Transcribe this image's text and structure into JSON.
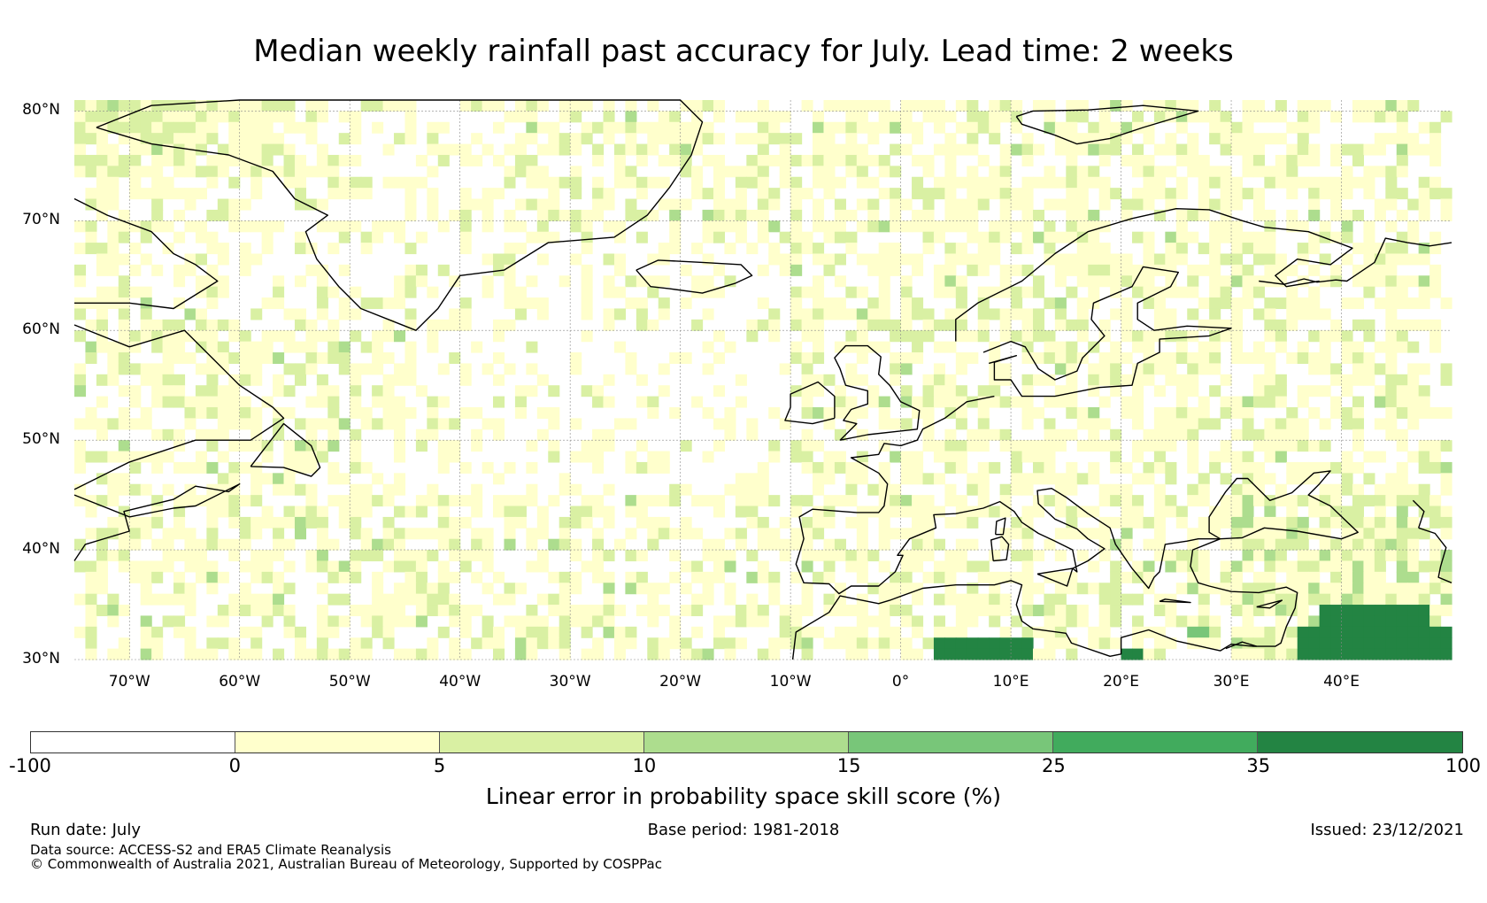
{
  "title": "Median weekly rainfall past accuracy for July. Lead time: 2 weeks",
  "map": {
    "region": "North Atlantic / Europe",
    "lat_range": [
      30,
      81
    ],
    "lon_range": [
      -75,
      50
    ],
    "lat_ticks": [
      {
        "value": 80,
        "label": "80°N"
      },
      {
        "value": 70,
        "label": "70°N"
      },
      {
        "value": 60,
        "label": "60°N"
      },
      {
        "value": 50,
        "label": "50°N"
      },
      {
        "value": 40,
        "label": "40°N"
      },
      {
        "value": 30,
        "label": "30°N"
      }
    ],
    "lon_ticks": [
      {
        "value": -70,
        "label": "70°W"
      },
      {
        "value": -60,
        "label": "60°W"
      },
      {
        "value": -50,
        "label": "50°W"
      },
      {
        "value": -40,
        "label": "40°W"
      },
      {
        "value": -30,
        "label": "30°W"
      },
      {
        "value": -20,
        "label": "20°W"
      },
      {
        "value": -10,
        "label": "10°W"
      },
      {
        "value": 0,
        "label": "0°"
      },
      {
        "value": 10,
        "label": "10°E"
      },
      {
        "value": 20,
        "label": "20°E"
      },
      {
        "value": 30,
        "label": "30°E"
      },
      {
        "value": 40,
        "label": "40°E"
      }
    ],
    "gridlines": true,
    "coastline_color": "#000000"
  },
  "colorbar": {
    "label": "Linear error in probability space skill score (%)",
    "bins": [
      {
        "from": -100,
        "to": 0,
        "color": "#ffffff"
      },
      {
        "from": 0,
        "to": 5,
        "color": "#ffffcc"
      },
      {
        "from": 5,
        "to": 10,
        "color": "#d9f0a3"
      },
      {
        "from": 10,
        "to": 15,
        "color": "#addd8e"
      },
      {
        "from": 15,
        "to": 25,
        "color": "#78c679"
      },
      {
        "from": 25,
        "to": 35,
        "color": "#41ab5d"
      },
      {
        "from": 35,
        "to": 100,
        "color": "#238443"
      }
    ],
    "tick_labels": [
      "-100",
      "0",
      "5",
      "10",
      "15",
      "25",
      "35",
      "100"
    ]
  },
  "footer": {
    "run_date": "Run date: July",
    "base_period": "Base period: 1981-2018",
    "issued": "Issued: 23/12/2021",
    "data_source": "Data source: ACCESS-S2 and ERA5 Climate Reanalysis",
    "copyright": "© Commonwealth of Australia 2021, Australian Bureau of Meteorology, Supported by COSPPac"
  }
}
